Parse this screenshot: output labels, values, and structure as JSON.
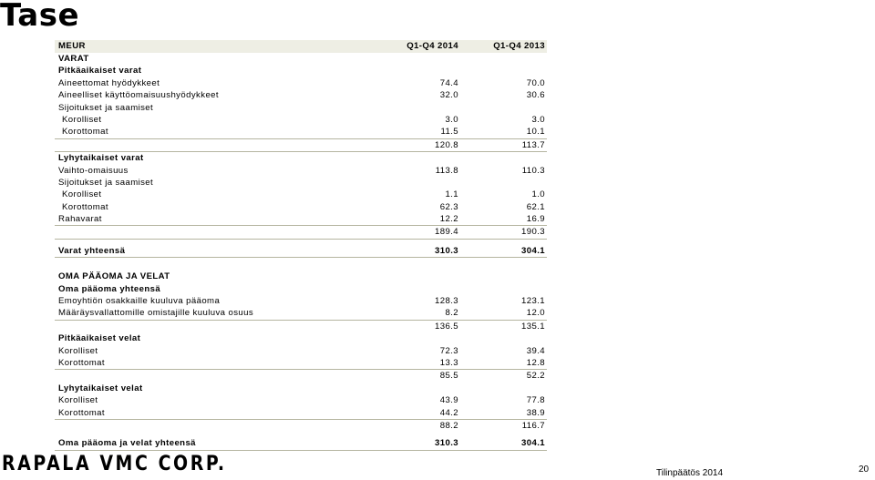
{
  "page": {
    "title": "Tase"
  },
  "table": {
    "header": {
      "label": "MEUR",
      "col1": "Q1-Q4 2014",
      "col2": "Q1-Q4 2013"
    },
    "rows": [
      {
        "label": "VARAT",
        "bold": true
      },
      {
        "label": "Pitkäaikaiset varat",
        "bold": true
      },
      {
        "label": "Aineettomat hyödykkeet",
        "v1": "74.4",
        "v2": "70.0"
      },
      {
        "label": "Aineelliset käyttöomaisuushyödykkeet",
        "v1": "32.0",
        "v2": "30.6"
      },
      {
        "label": "Sijoitukset ja saamiset"
      },
      {
        "label": "Korolliset",
        "v1": "3.0",
        "v2": "3.0",
        "sub": true
      },
      {
        "label": "Korottomat",
        "v1": "11.5",
        "v2": "10.1",
        "sub": true
      },
      {
        "label": "",
        "v1": "120.8",
        "v2": "113.7"
      },
      {
        "label": "Lyhytaikaiset varat",
        "bold": true
      },
      {
        "label": "Vaihto-omaisuus",
        "v1": "113.8",
        "v2": "110.3"
      },
      {
        "label": "Sijoitukset ja saamiset"
      },
      {
        "label": "Korolliset",
        "v1": "1.1",
        "v2": "1.0",
        "sub": true
      },
      {
        "label": "Korottomat",
        "v1": "62.3",
        "v2": "62.1",
        "sub": true
      },
      {
        "label": "Rahavarat",
        "v1": "12.2",
        "v2": "16.9"
      },
      {
        "label": "",
        "v1": "189.4",
        "v2": "190.3"
      },
      {
        "label": "Varat yhteensä",
        "v1": "310.3",
        "v2": "304.1",
        "bold": true
      },
      {
        "label": "OMA PÄÄOMA JA VELAT",
        "bold": true
      },
      {
        "label": "Oma pääoma yhteensä",
        "bold": true
      },
      {
        "label": "Emoyhtiön osakkaille kuuluva pääoma",
        "v1": "128.3",
        "v2": "123.1"
      },
      {
        "label": "Määräysvallattomille omistajille kuuluva osuus",
        "v1": "8.2",
        "v2": "12.0"
      },
      {
        "label": "",
        "v1": "136.5",
        "v2": "135.1"
      },
      {
        "label": "Pitkäaikaiset velat",
        "bold": true
      },
      {
        "label": "Korolliset",
        "v1": "72.3",
        "v2": "39.4"
      },
      {
        "label": "Korottomat",
        "v1": "13.3",
        "v2": "12.8"
      },
      {
        "label": "",
        "v1": "85.5",
        "v2": "52.2"
      },
      {
        "label": "Lyhytaikaiset velat",
        "bold": true
      },
      {
        "label": "Korolliset",
        "v1": "43.9",
        "v2": "77.8"
      },
      {
        "label": "Korottomat",
        "v1": "44.2",
        "v2": "38.9"
      },
      {
        "label": "",
        "v1": "88.2",
        "v2": "116.7"
      },
      {
        "label": "Oma pääoma ja velat yhteensä",
        "v1": "310.3",
        "v2": "304.1",
        "bold": true
      }
    ]
  },
  "footer": {
    "logo": "RAPALA VMC CORP.",
    "doc_label": "Tilinpäätös 2014",
    "page_number": "20"
  }
}
